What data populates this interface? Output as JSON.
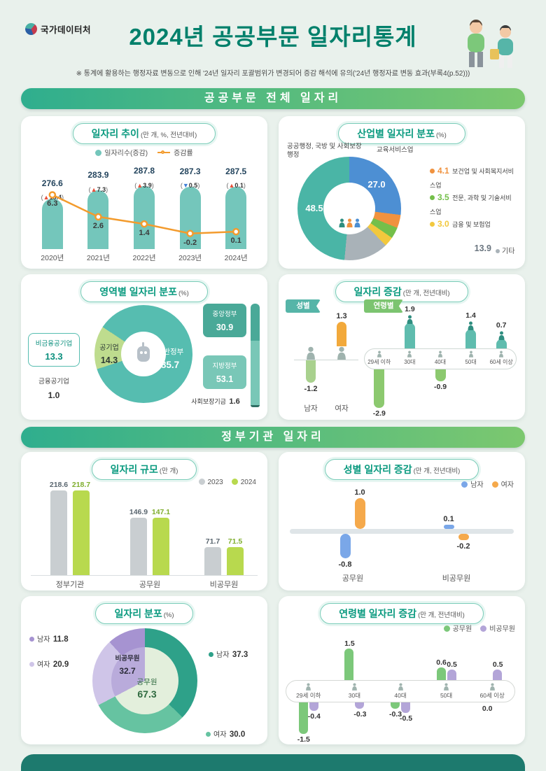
{
  "header": {
    "agency": "국가데이터처",
    "title": "2024년 공공부문 일자리통계",
    "note": "※ 통계에 활용하는 행정자료 변동으로 인해 '24년 일자리 포괄범위가 변경되어 증감 해석에 유의('24년 행정자료 변동 효과(부록4(p.52)))"
  },
  "sections": [
    {
      "label": "공공부문 전체 일자리"
    },
    {
      "label": "정부기관 일자리"
    }
  ],
  "colors": {
    "background": "#e9f1ec",
    "accent_teal": "#0a9a7f",
    "banner_start": "#2fae8e",
    "banner_end": "#7cc86f",
    "footer": "#1d7a6e",
    "up_arrow": "#e8503a",
    "down_arrow": "#3f7fd6"
  },
  "chart_data": [
    {
      "id": "trend",
      "type": "bar+line",
      "title": "일자리 추이",
      "unit": "(만 개, %, 전년대비)",
      "legend": [
        {
          "label": "일자리수(증감)",
          "color": "#74c6bb"
        },
        {
          "label": "증감률",
          "color": "#f39b2d"
        }
      ],
      "categories": [
        "2020년",
        "2021년",
        "2022년",
        "2023년",
        "2024년"
      ],
      "series": [
        {
          "name": "일자리수",
          "values": [
            276.6,
            283.9,
            287.8,
            287.3,
            287.5
          ]
        },
        {
          "name": "증감",
          "values": [
            16.4,
            7.3,
            3.9,
            -0.5,
            0.1
          ]
        },
        {
          "name": "증감률",
          "values": [
            6.3,
            2.6,
            1.4,
            -0.2,
            0.1
          ]
        }
      ],
      "bar_color": "#74c6bb",
      "line_color": "#f39b2d"
    },
    {
      "id": "industry",
      "type": "pie",
      "title": "산업별 일자리 분포",
      "unit": "(%)",
      "slices": [
        {
          "label": "공공행정, 국방 및 사회보장행정",
          "value": 48.5,
          "color": "#4ab5a6"
        },
        {
          "label": "교육서비스업",
          "value": 27.0,
          "color": "#4d8fd3"
        },
        {
          "label": "보건업 및 사회복지서비스업",
          "value": 4.1,
          "color": "#f0923f"
        },
        {
          "label": "전문, 과학 및 기술서비스업",
          "value": 3.5,
          "color": "#74bf4a"
        },
        {
          "label": "금융 및 보험업",
          "value": 3.0,
          "color": "#f2c83d"
        },
        {
          "label": "기타",
          "value": 13.9,
          "color": "#a9b2b8"
        }
      ]
    },
    {
      "id": "sector",
      "type": "pie",
      "title": "영역별 일자리 분포",
      "unit": "(%)",
      "slices": [
        {
          "label": "일반정부",
          "value": 85.7,
          "color": "#56bdb0"
        },
        {
          "label": "공기업",
          "value": 14.3,
          "color": "#bedc8e"
        }
      ],
      "callouts": [
        {
          "label": "비금융공기업",
          "value": 13.3
        },
        {
          "label": "금융공기업",
          "value": 1.0
        }
      ],
      "breakdown": [
        {
          "label": "중앙정부",
          "value": 30.9,
          "color": "#4aa998"
        },
        {
          "label": "지방정부",
          "value": 53.1,
          "color": "#79c7b7"
        },
        {
          "label": "사회보장기금",
          "value": 1.6,
          "color": "#2e6e63"
        }
      ]
    },
    {
      "id": "change",
      "type": "bar",
      "title": "일자리 증감",
      "unit": "(만 개, 전년대비)",
      "groups": [
        {
          "label": "성별",
          "items": [
            {
              "label": "남자",
              "value": -1.2,
              "color": "#a9d18e"
            },
            {
              "label": "여자",
              "value": 1.3,
              "color": "#f2a93b"
            }
          ]
        },
        {
          "label": "연령별",
          "items": [
            {
              "label": "29세 이하",
              "value": -2.9,
              "color": "#8cc96f"
            },
            {
              "label": "30대",
              "value": 1.9,
              "color": "#5fbcae"
            },
            {
              "label": "40대",
              "value": -0.9,
              "color": "#8cc96f"
            },
            {
              "label": "50대",
              "value": 1.4,
              "color": "#5fbcae"
            },
            {
              "label": "60세 이상",
              "value": 0.7,
              "color": "#5fbcae"
            }
          ]
        }
      ]
    },
    {
      "id": "scale",
      "type": "bar",
      "title": "일자리 규모",
      "unit": "(만 개)",
      "legend": [
        {
          "label": "2023",
          "color": "#c9ced1"
        },
        {
          "label": "2024",
          "color": "#b8d94e"
        }
      ],
      "categories": [
        "정부기관",
        "공무원",
        "비공무원"
      ],
      "series": [
        {
          "name": "2023",
          "values": [
            218.6,
            146.9,
            71.7
          ]
        },
        {
          "name": "2024",
          "values": [
            218.7,
            147.1,
            71.5
          ]
        }
      ]
    },
    {
      "id": "gov_gender_change",
      "type": "bar",
      "title": "성별 일자리 증감",
      "unit": "(만 개, 전년대비)",
      "legend": [
        {
          "label": "남자",
          "color": "#7aa7e8"
        },
        {
          "label": "여자",
          "color": "#f5a94b"
        }
      ],
      "categories": [
        "공무원",
        "비공무원"
      ],
      "series": [
        {
          "name": "남자",
          "values": [
            -0.8,
            0.1
          ]
        },
        {
          "name": "여자",
          "values": [
            1.0,
            -0.2
          ]
        }
      ]
    },
    {
      "id": "gov_distribution",
      "type": "pie",
      "title": "일자리 분포",
      "unit": "(%)",
      "inner": [
        {
          "label": "공무원",
          "value": 67.3
        },
        {
          "label": "비공무원",
          "value": 32.7
        }
      ],
      "outer": [
        {
          "label": "남자",
          "value": 37.3,
          "color": "#2ea189",
          "group": "공무원"
        },
        {
          "label": "여자",
          "value": 30.0,
          "color": "#66c3a1",
          "group": "공무원"
        },
        {
          "label": "여자",
          "value": 20.9,
          "color": "#cfc5e8",
          "group": "비공무원"
        },
        {
          "label": "남자",
          "value": 11.8,
          "color": "#a693d1",
          "group": "비공무원"
        }
      ]
    },
    {
      "id": "gov_age_change",
      "type": "bar",
      "title": "연령별 일자리 증감",
      "unit": "(만 개, 전년대비)",
      "legend": [
        {
          "label": "공무원",
          "color": "#7cc87a"
        },
        {
          "label": "비공무원",
          "color": "#b3a5d8"
        }
      ],
      "categories": [
        "29세 이하",
        "30대",
        "40대",
        "50대",
        "60세 이상"
      ],
      "series": [
        {
          "name": "공무원",
          "values": [
            -1.5,
            1.5,
            -0.3,
            0.6,
            0.0
          ]
        },
        {
          "name": "비공무원",
          "values": [
            -0.4,
            -0.3,
            -0.5,
            0.5,
            0.5
          ]
        }
      ]
    }
  ]
}
